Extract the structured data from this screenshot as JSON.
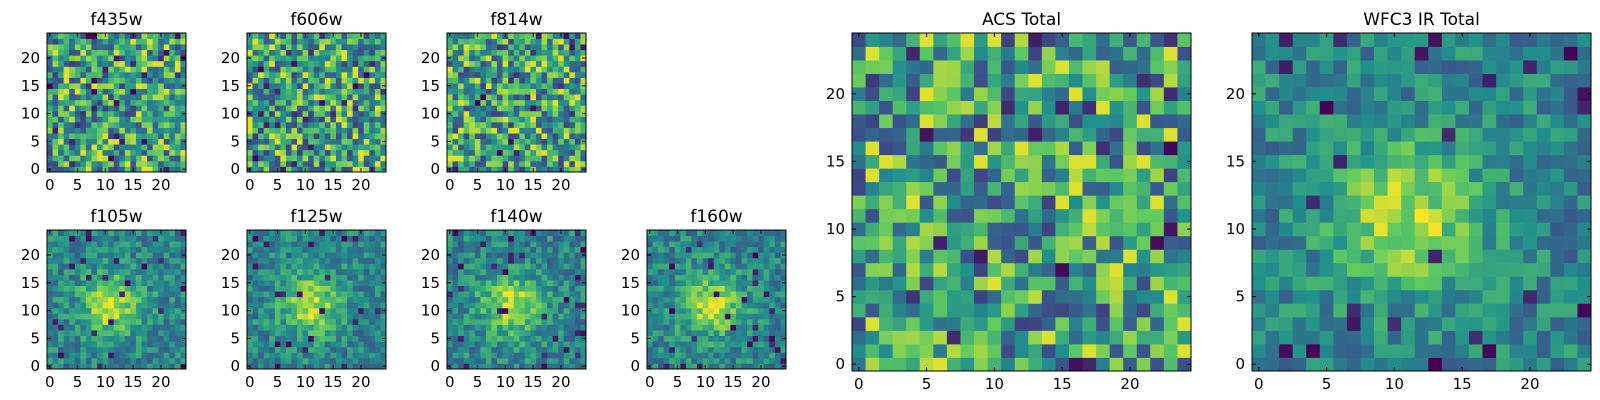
{
  "chart_data": [
    {
      "type": "heatmap",
      "title": "f435w",
      "xticks": [
        0,
        5,
        10,
        15,
        20
      ],
      "yticks": [
        0,
        5,
        10,
        15,
        20
      ],
      "xlim": [
        -0.5,
        24.5
      ],
      "ylim": [
        -0.5,
        24.5
      ],
      "grid_size": 25,
      "pattern": "noise",
      "seed": 11
    },
    {
      "type": "heatmap",
      "title": "f606w",
      "xticks": [
        0,
        5,
        10,
        15,
        20
      ],
      "yticks": [
        0,
        5,
        10,
        15,
        20
      ],
      "xlim": [
        -0.5,
        24.5
      ],
      "ylim": [
        -0.5,
        24.5
      ],
      "grid_size": 25,
      "pattern": "noise",
      "seed": 23
    },
    {
      "type": "heatmap",
      "title": "f814w",
      "xticks": [
        0,
        5,
        10,
        15,
        20
      ],
      "yticks": [
        0,
        5,
        10,
        15,
        20
      ],
      "xlim": [
        -0.5,
        24.5
      ],
      "ylim": [
        -0.5,
        24.5
      ],
      "grid_size": 25,
      "pattern": "noise",
      "seed": 37
    },
    {
      "type": "heatmap",
      "title": "f105w",
      "xticks": [
        0,
        5,
        10,
        15,
        20
      ],
      "yticks": [
        0,
        5,
        10,
        15,
        20
      ],
      "xlim": [
        -0.5,
        24.5
      ],
      "ylim": [
        -0.5,
        24.5
      ],
      "grid_size": 25,
      "pattern": "source",
      "seed": 41
    },
    {
      "type": "heatmap",
      "title": "f125w",
      "xticks": [
        0,
        5,
        10,
        15,
        20
      ],
      "yticks": [
        0,
        5,
        10,
        15,
        20
      ],
      "xlim": [
        -0.5,
        24.5
      ],
      "ylim": [
        -0.5,
        24.5
      ],
      "grid_size": 25,
      "pattern": "source",
      "seed": 53
    },
    {
      "type": "heatmap",
      "title": "f140w",
      "xticks": [
        0,
        5,
        10,
        15,
        20
      ],
      "yticks": [
        0,
        5,
        10,
        15,
        20
      ],
      "xlim": [
        -0.5,
        24.5
      ],
      "ylim": [
        -0.5,
        24.5
      ],
      "grid_size": 25,
      "pattern": "source",
      "seed": 67
    },
    {
      "type": "heatmap",
      "title": "f160w",
      "xticks": [
        0,
        5,
        10,
        15,
        20
      ],
      "yticks": [
        0,
        5,
        10,
        15,
        20
      ],
      "xlim": [
        -0.5,
        24.5
      ],
      "ylim": [
        -0.5,
        24.5
      ],
      "grid_size": 25,
      "pattern": "source",
      "seed": 79
    },
    {
      "type": "heatmap",
      "title": "ACS Total",
      "xticks": [
        0,
        5,
        10,
        15,
        20
      ],
      "yticks": [
        0,
        5,
        10,
        15,
        20
      ],
      "xlim": [
        -0.5,
        24.5
      ],
      "ylim": [
        -0.5,
        24.5
      ],
      "grid_size": 25,
      "pattern": "noise",
      "seed": 89
    },
    {
      "type": "heatmap",
      "title": "WFC3 IR Total",
      "xticks": [
        0,
        5,
        10,
        15,
        20
      ],
      "yticks": [
        0,
        5,
        10,
        15,
        20
      ],
      "xlim": [
        -0.5,
        24.5
      ],
      "ylim": [
        -0.5,
        24.5
      ],
      "grid_size": 25,
      "pattern": "source",
      "seed": 97
    }
  ],
  "colormap": [
    "#440154",
    "#3b528b",
    "#21918c",
    "#5ec962",
    "#fde725"
  ]
}
